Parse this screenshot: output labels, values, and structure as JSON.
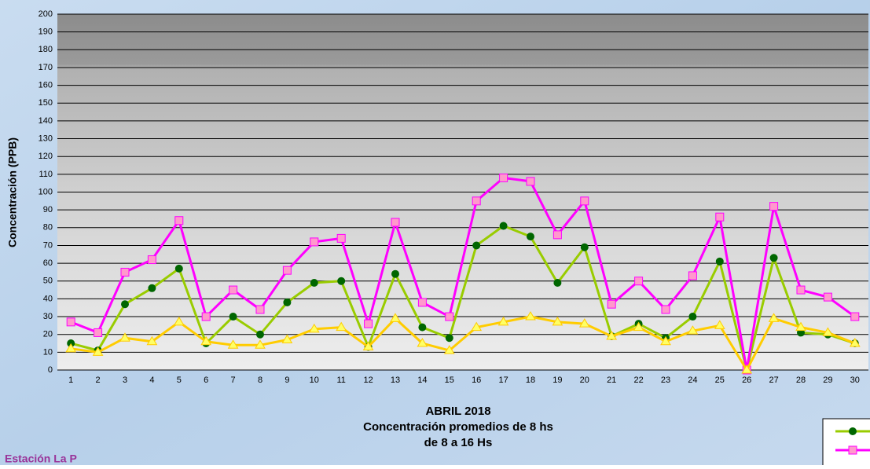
{
  "chart_data": {
    "type": "line",
    "title": [
      "ABRIL 2018",
      "Concentración promedios de 8 hs",
      "de 8 a 16 Hs"
    ],
    "y_label": "Concentración (PPB)",
    "annotation": "Estación La P",
    "categories": [
      "1",
      "2",
      "3",
      "4",
      "5",
      "6",
      "7",
      "8",
      "9",
      "10",
      "11",
      "12",
      "13",
      "14",
      "15",
      "16",
      "17",
      "18",
      "19",
      "20",
      "21",
      "22",
      "23",
      "24",
      "25",
      "26",
      "27",
      "28",
      "29",
      "30"
    ],
    "series": [
      {
        "color": "#99cc00",
        "marker_color": "#006600",
        "marker": "circle",
        "values": [
          15,
          11,
          37,
          46,
          57,
          15,
          30,
          20,
          38,
          49,
          50,
          13,
          54,
          24,
          18,
          70,
          81,
          75,
          49,
          69,
          19,
          26,
          18,
          30,
          61,
          0,
          63,
          21,
          20,
          15
        ]
      },
      {
        "color": "#ff00ff",
        "marker_color": "#ff99cc",
        "marker": "square",
        "values": [
          27,
          21,
          55,
          62,
          84,
          30,
          45,
          34,
          56,
          72,
          74,
          26,
          83,
          38,
          30,
          95,
          108,
          106,
          76,
          95,
          37,
          50,
          34,
          53,
          86,
          0,
          92,
          45,
          41,
          30
        ]
      },
      {
        "color": "#ffcc00",
        "marker_color": "#ffff66",
        "marker": "triangle",
        "values": [
          12,
          10,
          18,
          16,
          27,
          16,
          14,
          14,
          17,
          23,
          24,
          13,
          29,
          15,
          11,
          24,
          27,
          30,
          27,
          26,
          19,
          24,
          16,
          22,
          25,
          0,
          29,
          24,
          21,
          15
        ]
      }
    ],
    "ylim": [
      0,
      200
    ],
    "yticks": [
      0,
      10,
      20,
      30,
      40,
      50,
      60,
      70,
      80,
      90,
      100,
      110,
      120,
      130,
      140,
      150,
      160,
      170,
      180,
      190,
      200
    ],
    "grid": true
  }
}
